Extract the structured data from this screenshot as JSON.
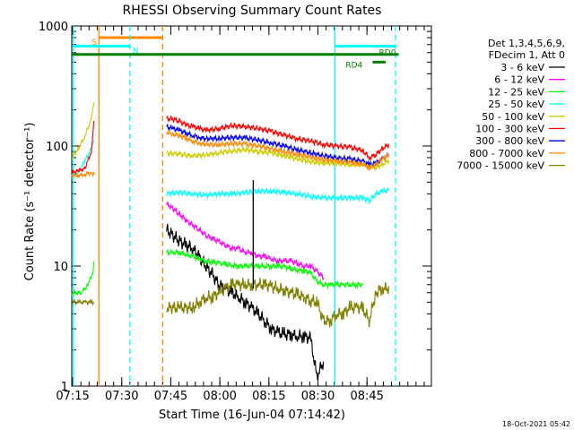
{
  "chart_data": {
    "type": "line",
    "title": "RHESSI Observing Summary Count Rates",
    "xlabel": "Start Time (16-Jun-04 07:14:42)",
    "ylabel": "Count Rate (s⁻¹ detector⁻¹)",
    "yscale": "log",
    "ylim": [
      1,
      1000
    ],
    "xlim_minutes": [
      0,
      110
    ],
    "x_tick_labels": [
      "07:15",
      "07:30",
      "07:45",
      "08:00",
      "08:15",
      "08:30",
      "08:45"
    ],
    "x_tick_minutes": [
      0.3,
      15.3,
      30.3,
      45.3,
      60.3,
      75.3,
      90.3
    ],
    "y_tick_labels": [
      "1",
      "10",
      "100",
      "1000"
    ],
    "y_tick_values": [
      1,
      10,
      100,
      1000
    ],
    "timestamp": "18-Oct-2021 05:42",
    "legend_header": [
      "Det 1,3,4,5,6,9,",
      "FDecim 1, Att 0"
    ],
    "series": [
      {
        "name": "3 - 6 keV",
        "color": "#000000",
        "points": [
          [
            29,
            20
          ],
          [
            31,
            18
          ],
          [
            33,
            16
          ],
          [
            35,
            15
          ],
          [
            37,
            14
          ],
          [
            39,
            12
          ],
          [
            41,
            10
          ],
          [
            43,
            8.5
          ],
          [
            45,
            7
          ],
          [
            47,
            6.5
          ],
          [
            49,
            6
          ],
          [
            51,
            5.5
          ],
          [
            53,
            5
          ],
          [
            55,
            4.5
          ],
          [
            57,
            4
          ],
          [
            59,
            3.5
          ],
          [
            61,
            3
          ],
          [
            63,
            2.8
          ],
          [
            65,
            2.7
          ],
          [
            67,
            2.7
          ],
          [
            69,
            2.6
          ],
          [
            71,
            2.6
          ],
          [
            73,
            2.5
          ],
          [
            75,
            1.2
          ],
          [
            77,
            1.6
          ]
        ]
      },
      {
        "name": "6 - 12 keV",
        "color": "#ff00ff",
        "points": [
          [
            29,
            33
          ],
          [
            31,
            30
          ],
          [
            33,
            27
          ],
          [
            35,
            24
          ],
          [
            37,
            22
          ],
          [
            39,
            20
          ],
          [
            41,
            18
          ],
          [
            43,
            17
          ],
          [
            45,
            16
          ],
          [
            47,
            15
          ],
          [
            49,
            14
          ],
          [
            51,
            14
          ],
          [
            53,
            13
          ],
          [
            55,
            13
          ],
          [
            57,
            12
          ],
          [
            59,
            12
          ],
          [
            61,
            11.5
          ],
          [
            63,
            11
          ],
          [
            65,
            11
          ],
          [
            67,
            11
          ],
          [
            69,
            10.5
          ],
          [
            71,
            10
          ],
          [
            73,
            10
          ],
          [
            75,
            9
          ],
          [
            77,
            8
          ]
        ]
      },
      {
        "name": "12 - 25 keV",
        "color": "#00ff00",
        "points": [
          [
            29,
            13
          ],
          [
            31,
            13
          ],
          [
            33,
            13
          ],
          [
            35,
            12.5
          ],
          [
            37,
            12
          ],
          [
            39,
            11.5
          ],
          [
            41,
            11
          ],
          [
            43,
            10.8
          ],
          [
            45,
            10.6
          ],
          [
            47,
            10.4
          ],
          [
            49,
            10.2
          ],
          [
            51,
            10
          ],
          [
            53,
            10
          ],
          [
            55,
            10
          ],
          [
            57,
            10
          ],
          [
            59,
            10
          ],
          [
            61,
            10
          ],
          [
            63,
            10
          ],
          [
            65,
            9.8
          ],
          [
            67,
            9.5
          ],
          [
            69,
            9.3
          ],
          [
            71,
            9.1
          ],
          [
            73,
            8.8
          ],
          [
            75,
            7.5
          ],
          [
            77,
            7
          ],
          [
            79,
            7
          ],
          [
            81,
            7
          ],
          [
            83,
            7
          ],
          [
            85,
            7
          ],
          [
            87,
            7
          ],
          [
            89,
            7
          ]
        ]
      },
      {
        "name": "25 - 50 keV",
        "color": "#00ffff",
        "points": [
          [
            29,
            40
          ],
          [
            33,
            41
          ],
          [
            37,
            40
          ],
          [
            41,
            39
          ],
          [
            45,
            40
          ],
          [
            49,
            40
          ],
          [
            53,
            41
          ],
          [
            57,
            42
          ],
          [
            61,
            42
          ],
          [
            65,
            41
          ],
          [
            69,
            40
          ],
          [
            73,
            38
          ],
          [
            77,
            37
          ],
          [
            81,
            37
          ],
          [
            85,
            37
          ],
          [
            89,
            37
          ],
          [
            91,
            35
          ],
          [
            93,
            40
          ],
          [
            95,
            42
          ],
          [
            97,
            43
          ]
        ]
      },
      {
        "name": "50 - 100 keV",
        "color": "#cccc00",
        "points": [
          [
            29,
            88
          ],
          [
            33,
            85
          ],
          [
            37,
            83
          ],
          [
            41,
            84
          ],
          [
            45,
            88
          ],
          [
            49,
            91
          ],
          [
            53,
            93
          ],
          [
            57,
            90
          ],
          [
            61,
            88
          ],
          [
            65,
            83
          ],
          [
            69,
            78
          ],
          [
            73,
            74
          ],
          [
            77,
            72
          ],
          [
            81,
            72
          ],
          [
            85,
            70
          ],
          [
            89,
            70
          ],
          [
            91,
            68
          ],
          [
            93,
            66
          ],
          [
            95,
            70
          ],
          [
            97,
            76
          ]
        ]
      },
      {
        "name": "100 - 300 keV",
        "color": "#ff0000",
        "points": [
          [
            29,
            170
          ],
          [
            31,
            168
          ],
          [
            33,
            160
          ],
          [
            35,
            150
          ],
          [
            37,
            145
          ],
          [
            39,
            140
          ],
          [
            41,
            135
          ],
          [
            45,
            140
          ],
          [
            49,
            148
          ],
          [
            53,
            145
          ],
          [
            57,
            140
          ],
          [
            61,
            133
          ],
          [
            65,
            123
          ],
          [
            69,
            115
          ],
          [
            73,
            110
          ],
          [
            77,
            103
          ],
          [
            81,
            100
          ],
          [
            85,
            98
          ],
          [
            89,
            92
          ],
          [
            91,
            80
          ],
          [
            93,
            85
          ],
          [
            95,
            95
          ],
          [
            97,
            103
          ]
        ]
      },
      {
        "name": "300 - 800 keV",
        "color": "#0000ff",
        "points": [
          [
            29,
            145
          ],
          [
            31,
            140
          ],
          [
            33,
            135
          ],
          [
            35,
            128
          ],
          [
            37,
            122
          ],
          [
            39,
            118
          ],
          [
            41,
            115
          ],
          [
            45,
            116
          ],
          [
            49,
            118
          ],
          [
            53,
            117
          ],
          [
            57,
            112
          ],
          [
            61,
            106
          ],
          [
            65,
            100
          ],
          [
            69,
            93
          ],
          [
            73,
            88
          ],
          [
            77,
            83
          ],
          [
            81,
            80
          ],
          [
            85,
            78
          ],
          [
            89,
            75
          ],
          [
            91,
            70
          ],
          [
            93,
            72
          ],
          [
            95,
            78
          ],
          [
            97,
            85
          ]
        ]
      },
      {
        "name": "800 - 7000 keV",
        "color": "#ff8800",
        "points": [
          [
            29,
            130
          ],
          [
            31,
            126
          ],
          [
            33,
            122
          ],
          [
            35,
            116
          ],
          [
            37,
            110
          ],
          [
            39,
            106
          ],
          [
            41,
            103
          ],
          [
            45,
            103
          ],
          [
            49,
            105
          ],
          [
            53,
            104
          ],
          [
            57,
            100
          ],
          [
            61,
            95
          ],
          [
            65,
            90
          ],
          [
            69,
            85
          ],
          [
            73,
            81
          ],
          [
            77,
            77
          ],
          [
            81,
            75
          ],
          [
            85,
            73
          ],
          [
            89,
            71
          ],
          [
            91,
            66
          ],
          [
            93,
            70
          ],
          [
            95,
            78
          ],
          [
            97,
            84
          ]
        ]
      },
      {
        "name": "7000 - 15000 keV",
        "color": "#808000",
        "points": [
          [
            29,
            4.5
          ],
          [
            33,
            4.5
          ],
          [
            37,
            4.5
          ],
          [
            39,
            5
          ],
          [
            41,
            5.5
          ],
          [
            43,
            5.5
          ],
          [
            45,
            6
          ],
          [
            47,
            6.5
          ],
          [
            49,
            7
          ],
          [
            51,
            7
          ],
          [
            53,
            7
          ],
          [
            55,
            7
          ],
          [
            57,
            7
          ],
          [
            59,
            7
          ],
          [
            61,
            6.8
          ],
          [
            63,
            6.5
          ],
          [
            65,
            6.3
          ],
          [
            67,
            6
          ],
          [
            69,
            5.8
          ],
          [
            71,
            5.5
          ],
          [
            73,
            5.2
          ],
          [
            75,
            5
          ],
          [
            77,
            3.5
          ],
          [
            79,
            3.5
          ],
          [
            81,
            4
          ],
          [
            83,
            4
          ],
          [
            85,
            4.5
          ],
          [
            87,
            4.5
          ],
          [
            89,
            4.5
          ],
          [
            91,
            3.5
          ],
          [
            93,
            6
          ],
          [
            95,
            6.5
          ],
          [
            97,
            6.5
          ]
        ]
      }
    ],
    "early_segment": [
      {
        "color": "#00ffff",
        "points": [
          [
            0,
            55
          ],
          [
            2,
            60
          ],
          [
            4,
            75
          ],
          [
            6,
            95
          ],
          [
            6.8,
            110
          ]
        ]
      },
      {
        "color": "#cccc00",
        "points": [
          [
            0,
            80
          ],
          [
            2,
            95
          ],
          [
            4,
            120
          ],
          [
            6,
            170
          ],
          [
            6.8,
            230
          ]
        ]
      },
      {
        "color": "#ff0000",
        "points": [
          [
            0,
            60
          ],
          [
            2,
            62
          ],
          [
            4,
            65
          ],
          [
            6,
            90
          ],
          [
            6.8,
            160
          ]
        ]
      },
      {
        "color": "#ff8800",
        "points": [
          [
            0,
            57
          ],
          [
            2,
            57
          ],
          [
            4,
            58
          ],
          [
            6,
            60
          ],
          [
            6.8,
            58
          ]
        ]
      },
      {
        "color": "#00ff00",
        "points": [
          [
            0,
            6
          ],
          [
            3,
            6
          ],
          [
            5,
            7
          ],
          [
            6.5,
            9
          ],
          [
            6.8,
            11
          ]
        ]
      },
      {
        "color": "#808000",
        "points": [
          [
            0,
            5
          ],
          [
            2,
            5
          ],
          [
            4,
            5
          ],
          [
            6,
            5
          ],
          [
            6.8,
            5
          ]
        ]
      }
    ],
    "spikes": [
      {
        "color": "#000000",
        "x": 55.5,
        "y_low": 6.5,
        "y_high": 52
      }
    ],
    "vertical_markers": [
      {
        "label": "S",
        "color": "#ff8800",
        "style": "solid",
        "x": 8.3,
        "bar_end": 27.8,
        "bar_y": 800
      },
      {
        "label": "",
        "color": "#ff8800",
        "style": "dashed",
        "x": 27.8
      },
      {
        "label": "N",
        "color": "#00ffff",
        "style": "solid",
        "x": 0.5,
        "bar_end": 17.8,
        "bar_y": 680
      },
      {
        "label": "",
        "color": "#00ffff",
        "style": "dashed",
        "x": 17.8
      },
      {
        "label": "",
        "color": "#00ffff",
        "style": "solid",
        "x": 80.5,
        "bar_end": 99,
        "bar_y": 680
      },
      {
        "label": "",
        "color": "#00ffff",
        "style": "dashed",
        "x": 99
      }
    ],
    "horizontal_bars": [
      {
        "label": "RD0",
        "color": "#008000",
        "x_start": 0,
        "x_end": 100,
        "y": 580
      },
      {
        "label": "RD4",
        "color": "#008000",
        "x_start": 92,
        "x_end": 96,
        "y": 500
      }
    ]
  }
}
